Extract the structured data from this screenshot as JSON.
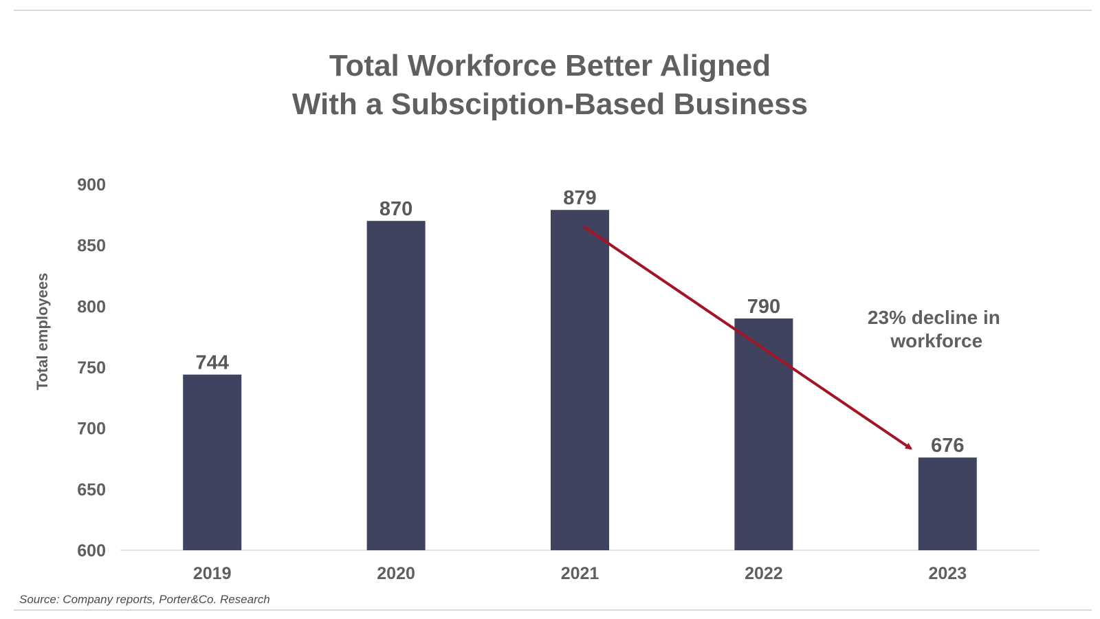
{
  "title_lines": [
    "Total Workforce Better Aligned",
    "With a Subsciption-Based Business"
  ],
  "source": "Source: Company reports, Porter&Co. Research",
  "colors": {
    "bar": "#3f4360",
    "arrow": "#a31526",
    "text": "#5f5f5f",
    "axis": "#d9d9d9"
  },
  "chart_data": {
    "type": "bar",
    "categories": [
      "2019",
      "2020",
      "2021",
      "2022",
      "2023"
    ],
    "values": [
      744,
      870,
      879,
      790,
      676
    ],
    "data_labels": [
      "744",
      "870",
      "879",
      "790",
      "676"
    ],
    "ylabel": "Total employees",
    "xlabel": "",
    "ylim": [
      600,
      900
    ],
    "yticks": [
      "600",
      "650",
      "700",
      "750",
      "800",
      "850",
      "900"
    ],
    "grid": false,
    "legend": "none",
    "annotation": {
      "lines": [
        "23% decline in",
        "workforce"
      ],
      "arrow_from": {
        "category": "2021",
        "value": 870
      },
      "arrow_to": {
        "category": "2023",
        "value": 686
      }
    }
  }
}
